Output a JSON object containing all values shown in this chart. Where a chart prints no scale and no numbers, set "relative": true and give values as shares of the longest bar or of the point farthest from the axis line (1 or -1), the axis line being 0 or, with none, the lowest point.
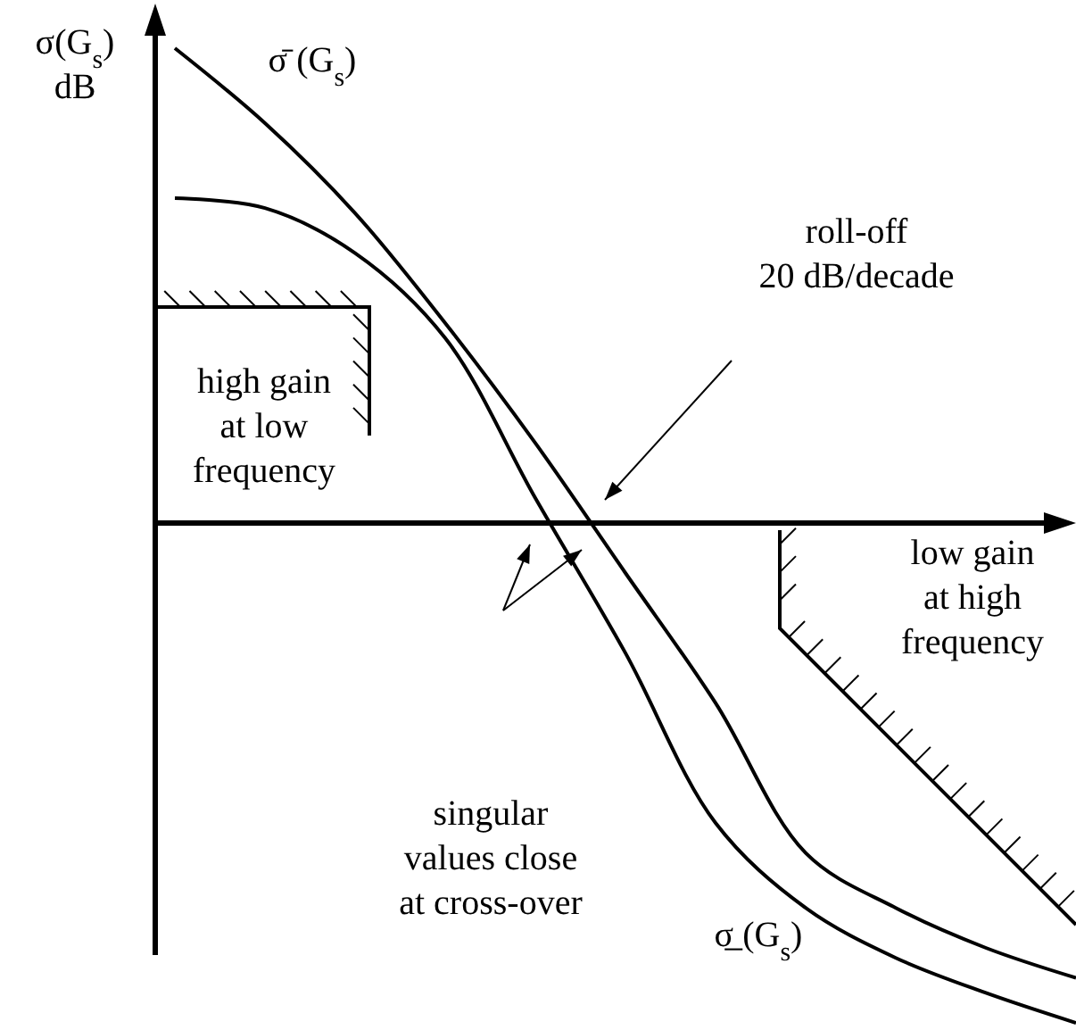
{
  "chart_data": {
    "type": "line",
    "relative": true,
    "ylabel": "σ(G$_{s}$)\ndB",
    "categories": [
      null,
      null,
      null,
      null,
      null,
      null,
      null,
      null,
      null,
      null,
      null
    ],
    "series": [
      {
        "name": "σ̄ (G$_{s}$)",
        "color": "#000000",
        "values": [
          0.95,
          0.8,
          0.62,
          0.4,
          0.16,
          -0.1,
          -0.36,
          -0.66,
          -0.77,
          -0.85,
          -0.91
        ]
      },
      {
        "name": "σ̲ (G$_{s}$)",
        "color": "#000000",
        "values": [
          0.65,
          0.63,
          0.54,
          0.37,
          0.05,
          -0.26,
          -0.6,
          -0.77,
          -0.87,
          -0.94,
          -1
        ]
      }
    ],
    "annotations": [
      "roll-off\n20 dB/decade",
      "high gain\nat low\nfrequency",
      "low gain\nat high\nfrequency",
      "singular\nvalues close\nat cross-over"
    ],
    "legend": false,
    "marker": "none",
    "line_style": "solid"
  }
}
